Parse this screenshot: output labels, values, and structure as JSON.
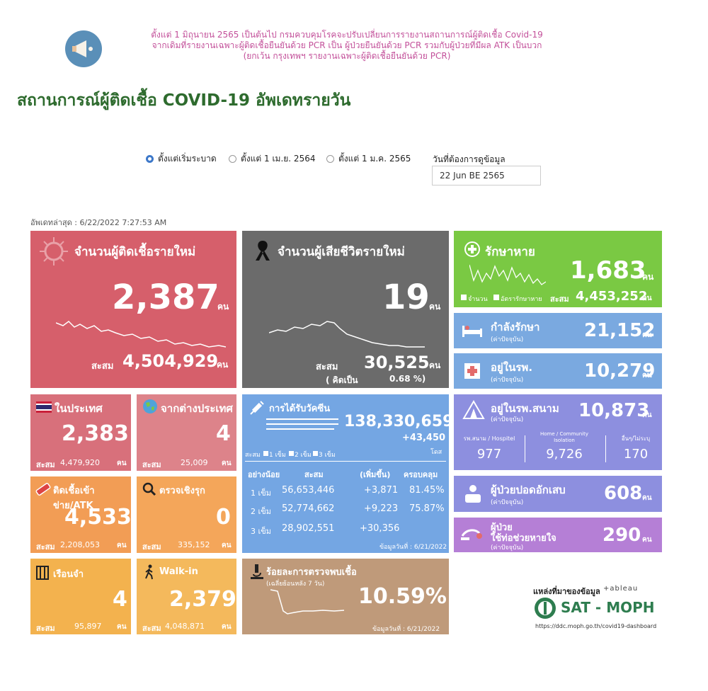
{
  "notice": {
    "line1": "ตั้งแต่ 1 มิถุนายน 2565 เป็นต้นไป กรมควบคุมโรคจะปรับเปลี่ยนการรายงานสถานการณ์ผู้ติดเชื้อ Covid-19",
    "line2": "จากเดิมที่รายงานเฉพาะผู้ติดเชื้อยืนยันด้วย PCR เป็น ผู้ป่วยยืนยันด้วย PCR รวมกับผู้ป่วยที่มีผล ATK เป็นบวก",
    "line3": "(ยกเว้น กรุงเทพฯ รายงานเฉพาะผู้ติดเชื้อยืนยันด้วย PCR)"
  },
  "page_title": "สถานการณ์ผู้ติดเชื้อ COVID-19 อัพเดทรายวัน",
  "filters": {
    "options": [
      "ตั้งแต่เริ่มระบาด",
      "ตั้งแต่ 1 เม.ย. 2564",
      "ตั้งแต่ 1 ม.ค. 2565"
    ],
    "selected_index": 0,
    "date_label": "วันที่ต้องการดูข้อมูล",
    "date_value": "22 Jun BE 2565"
  },
  "updated": "อัพเดทล่าสุด : 6/22/2022 7:27:53 AM",
  "unit": "คน",
  "cumulative_label": "สะสม",
  "new_cases": {
    "label": "จำนวนผู้ติดเชื้อรายใหม่",
    "value": "2,387",
    "cumulative": "4,504,929"
  },
  "deaths": {
    "label": "จำนวนผู้เสียชีวิตรายใหม่",
    "value": "19",
    "cumulative": "30,525",
    "rate_label": "( คิดเป็น",
    "rate": "0.68 %)"
  },
  "recovered": {
    "label": "รักษาหาย",
    "value": "1,683",
    "cumulative": "4,453,252",
    "legend1": "จำนวน",
    "legend2": "อัตรารักษาหาย"
  },
  "treating": {
    "label": "กำลังรักษา",
    "note": "(ค่าปัจจุบัน)",
    "value": "21,152"
  },
  "hospital": {
    "label": "อยู่ในรพ.",
    "note": "(ค่าปัจจุบัน)",
    "value": "10,279"
  },
  "field_hospital": {
    "label": "อยู่ในรพ.สนาม",
    "note": "(ค่าปัจจุบัน)",
    "value": "10,873",
    "cols": [
      {
        "label": "รพ.สนาม / Hospitel",
        "value": "977"
      },
      {
        "label": "Home / Community Isolation",
        "value": "9,726"
      },
      {
        "label": "อื่นๆ/ไม่ระบุ",
        "value": "170"
      }
    ]
  },
  "pneumonia": {
    "label": "ผู้ป่วยปอดอักเสบ",
    "note": "(ค่าปัจจุบัน)",
    "value": "608"
  },
  "ventilator": {
    "label1": "ผู้ป่วย",
    "label2": "ใช้ท่อช่วยหายใจ",
    "note": "(ค่าปัจจุบัน)",
    "value": "290"
  },
  "domestic": {
    "label": "ในประเทศ",
    "value": "2,383",
    "cumulative": "4,479,920"
  },
  "abroad": {
    "label": "จากต่างประเทศ",
    "value": "4",
    "cumulative": "25,009"
  },
  "atk": {
    "label": "ติดเชื้อเข้าข่าย/ATK",
    "value": "4,533",
    "cumulative": "2,208,053"
  },
  "active_search": {
    "label": "ตรวจเชิงรุก",
    "value": "0",
    "cumulative": "335,152"
  },
  "prison": {
    "label": "เรือนจำ",
    "value": "4",
    "cumulative": "95,897"
  },
  "walkin": {
    "label": "Walk-in",
    "value": "2,379",
    "cumulative": "4,048,871"
  },
  "vaccine": {
    "label": "การได้รับวัคซีน",
    "total": "138,330,659",
    "daily": "+43,450",
    "unit": "โดส",
    "legend": [
      "สะสม",
      "1 เข็ม",
      "2 เข็ม",
      "3 เข็ม"
    ],
    "headers": [
      "อย่างน้อย",
      "สะสม",
      "(เพิ่มขึ้น)",
      "ครอบคลุม"
    ],
    "rows": [
      {
        "dose": "1 เข็ม",
        "total": "56,653,446",
        "inc": "+3,871",
        "cov": "81.45%"
      },
      {
        "dose": "2 เข็ม",
        "total": "52,774,662",
        "inc": "+9,223",
        "cov": "75.87%"
      },
      {
        "dose": "3 เข็ม",
        "total": "28,902,551",
        "inc": "+30,356",
        "cov": ""
      }
    ],
    "data_date": "ข้อมูลวันที่ : 6/21/2022"
  },
  "positivity": {
    "label": "ร้อยละการตรวจพบเชื้อ",
    "note": "(เฉลี่ยย้อนหลัง 7 วัน)",
    "value": "10.59%",
    "data_date": "ข้อมูลวันที่ : 6/21/2022"
  },
  "source": {
    "label": "แหล่งที่มาของข้อมูล",
    "tableau": "+ableau",
    "brand": "SAT - MOPH",
    "url": "https://ddc.moph.go.th/covid19-dashboard"
  },
  "colors": {
    "red": "#d65f6b",
    "gray": "#6b6b6b",
    "green": "#7ac943",
    "blue": "#7aa9e0",
    "purple": "#8d8fdf",
    "pink_purple": "#b57fd6",
    "domestic": "#d8707b",
    "abroad": "#dd838a",
    "orange": "#f29d55",
    "orange2": "#f4a65a",
    "yellow": "#f3b24e",
    "yellow2": "#f4b95c",
    "vaccine": "#74a6e3",
    "tan": "#bf9a7a"
  }
}
